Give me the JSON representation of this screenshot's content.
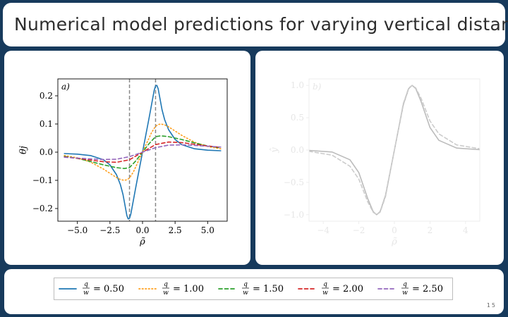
{
  "slide": {
    "title": "Numerical model predictions for varying vertical distance",
    "page_number": "15"
  },
  "chart_data": [
    {
      "type": "line",
      "panel_label": "a)",
      "xlabel": "ρ̃",
      "ylabel": "θj",
      "xlim": [
        -6.5,
        6.5
      ],
      "ylim": [
        -0.245,
        0.26
      ],
      "x_ticks": [
        -5.0,
        -2.5,
        0.0,
        2.5,
        5.0
      ],
      "x_tick_labels": [
        "−5.0",
        "−2.5",
        "0.0",
        "2.5",
        "5.0"
      ],
      "y_ticks": [
        -0.2,
        -0.1,
        0.0,
        0.1,
        0.2
      ],
      "y_tick_labels": [
        "−0.2",
        "−0.1",
        "0.0",
        "0.1",
        "0.2"
      ],
      "vlines": [
        -1.0,
        1.0
      ],
      "series": [
        {
          "color": "#1f77b4",
          "style": "solid",
          "x": [
            -6,
            -5,
            -4,
            -3,
            -2.5,
            -2,
            -1.7,
            -1.5,
            -1.3,
            -1.2,
            -1.1,
            -1,
            -0.9,
            -0.7,
            -0.5,
            -0.25,
            0,
            0.25,
            0.5,
            0.7,
            0.9,
            1,
            1.1,
            1.2,
            1.3,
            1.5,
            1.7,
            2,
            2.5,
            3,
            4,
            5,
            6
          ],
          "y": [
            -0.005,
            -0.007,
            -0.012,
            -0.027,
            -0.045,
            -0.08,
            -0.115,
            -0.15,
            -0.2,
            -0.225,
            -0.237,
            -0.235,
            -0.22,
            -0.17,
            -0.12,
            -0.06,
            0,
            0.06,
            0.12,
            0.17,
            0.22,
            0.235,
            0.237,
            0.225,
            0.2,
            0.15,
            0.115,
            0.08,
            0.045,
            0.027,
            0.012,
            0.007,
            0.005
          ]
        },
        {
          "color": "#ff9f1c",
          "style": "dotted",
          "x": [
            -6,
            -5,
            -4,
            -3,
            -2.5,
            -2,
            -1.7,
            -1.4,
            -1.2,
            -1,
            -0.7,
            -0.4,
            0,
            0.4,
            0.7,
            1,
            1.2,
            1.4,
            1.7,
            2,
            2.5,
            3,
            4,
            5,
            6
          ],
          "y": [
            -0.012,
            -0.02,
            -0.035,
            -0.06,
            -0.075,
            -0.09,
            -0.097,
            -0.1,
            -0.098,
            -0.092,
            -0.07,
            -0.04,
            0,
            0.04,
            0.07,
            0.092,
            0.098,
            0.1,
            0.097,
            0.09,
            0.075,
            0.06,
            0.035,
            0.02,
            0.012
          ]
        },
        {
          "color": "#2ca02c",
          "style": "dashed",
          "x": [
            -6,
            -5,
            -4,
            -3,
            -2,
            -1.4,
            -1,
            -0.5,
            0,
            0.5,
            1,
            1.4,
            2,
            3,
            4,
            5,
            6
          ],
          "y": [
            -0.015,
            -0.022,
            -0.033,
            -0.045,
            -0.055,
            -0.058,
            -0.055,
            -0.03,
            0,
            0.03,
            0.055,
            0.058,
            0.055,
            0.045,
            0.033,
            0.022,
            0.015
          ]
        },
        {
          "color": "#d62728",
          "style": "dashed",
          "x": [
            -6,
            -5,
            -4,
            -3,
            -2,
            -1,
            0,
            1,
            2,
            3,
            4,
            5,
            6
          ],
          "y": [
            -0.017,
            -0.022,
            -0.028,
            -0.034,
            -0.036,
            -0.027,
            0,
            0.027,
            0.036,
            0.034,
            0.028,
            0.022,
            0.017
          ]
        },
        {
          "color": "#9467bd",
          "style": "dashed",
          "x": [
            -6,
            -5,
            -4,
            -3,
            -2,
            -1,
            0,
            1,
            2,
            3,
            4,
            5,
            6
          ],
          "y": [
            -0.018,
            -0.021,
            -0.024,
            -0.026,
            -0.025,
            -0.016,
            0,
            0.016,
            0.025,
            0.026,
            0.024,
            0.021,
            0.018
          ]
        }
      ]
    },
    {
      "type": "line",
      "panel_label": "b)",
      "xlabel": "ρ̃",
      "ylabel": "ŷ",
      "xlim": [
        -4.8,
        4.8
      ],
      "ylim": [
        -1.1,
        1.1
      ],
      "x_ticks": [
        -4,
        -2,
        0,
        2,
        4
      ],
      "x_tick_labels": [
        "−4",
        "−2",
        "0",
        "2",
        "4"
      ],
      "y_ticks": [
        -1.0,
        -0.5,
        0.0,
        0.5,
        1.0
      ],
      "y_tick_labels": [
        "−1.0",
        "−0.5",
        "0.0",
        "0.5",
        "1.0"
      ],
      "faded": true,
      "series": [
        {
          "color": "#bbbbbb",
          "style": "solid",
          "x": [
            -4.8,
            -3.5,
            -2.5,
            -2,
            -1.5,
            -1.2,
            -1,
            -0.8,
            -0.5,
            0,
            0.5,
            0.8,
            1,
            1.2,
            1.5,
            2,
            2.5,
            3.5,
            4.8
          ],
          "y": [
            -0.005,
            -0.03,
            -0.15,
            -0.35,
            -0.75,
            -0.95,
            -1.0,
            -0.95,
            -0.7,
            0,
            0.7,
            0.95,
            1.0,
            0.95,
            0.75,
            0.35,
            0.15,
            0.03,
            0.005
          ]
        },
        {
          "color": "#cccccc",
          "style": "dashed",
          "x": [
            -4.8,
            -3.5,
            -2.5,
            -2,
            -1.5,
            -1.2,
            -1,
            -0.8,
            -0.5,
            0,
            0.5,
            0.8,
            1,
            1.2,
            1.5,
            2,
            2.5,
            3.5,
            4.8
          ],
          "y": [
            -0.02,
            -0.08,
            -0.25,
            -0.45,
            -0.8,
            -0.96,
            -1.0,
            -0.96,
            -0.72,
            0,
            0.72,
            0.96,
            1.0,
            0.96,
            0.8,
            0.45,
            0.25,
            0.08,
            0.02
          ]
        }
      ]
    }
  ],
  "legend": {
    "entries": [
      {
        "color": "#1f77b4",
        "style": "solid",
        "num": "q",
        "den": "w",
        "value": "= 0.50"
      },
      {
        "color": "#ff9f1c",
        "style": "dotted",
        "num": "q",
        "den": "w",
        "value": "= 1.00"
      },
      {
        "color": "#2ca02c",
        "style": "dashed",
        "num": "q",
        "den": "w",
        "value": "= 1.50"
      },
      {
        "color": "#d62728",
        "style": "dashed",
        "num": "q",
        "den": "w",
        "value": "= 2.00"
      },
      {
        "color": "#9467bd",
        "style": "dashed",
        "num": "q",
        "den": "w",
        "value": "= 2.50"
      }
    ]
  }
}
